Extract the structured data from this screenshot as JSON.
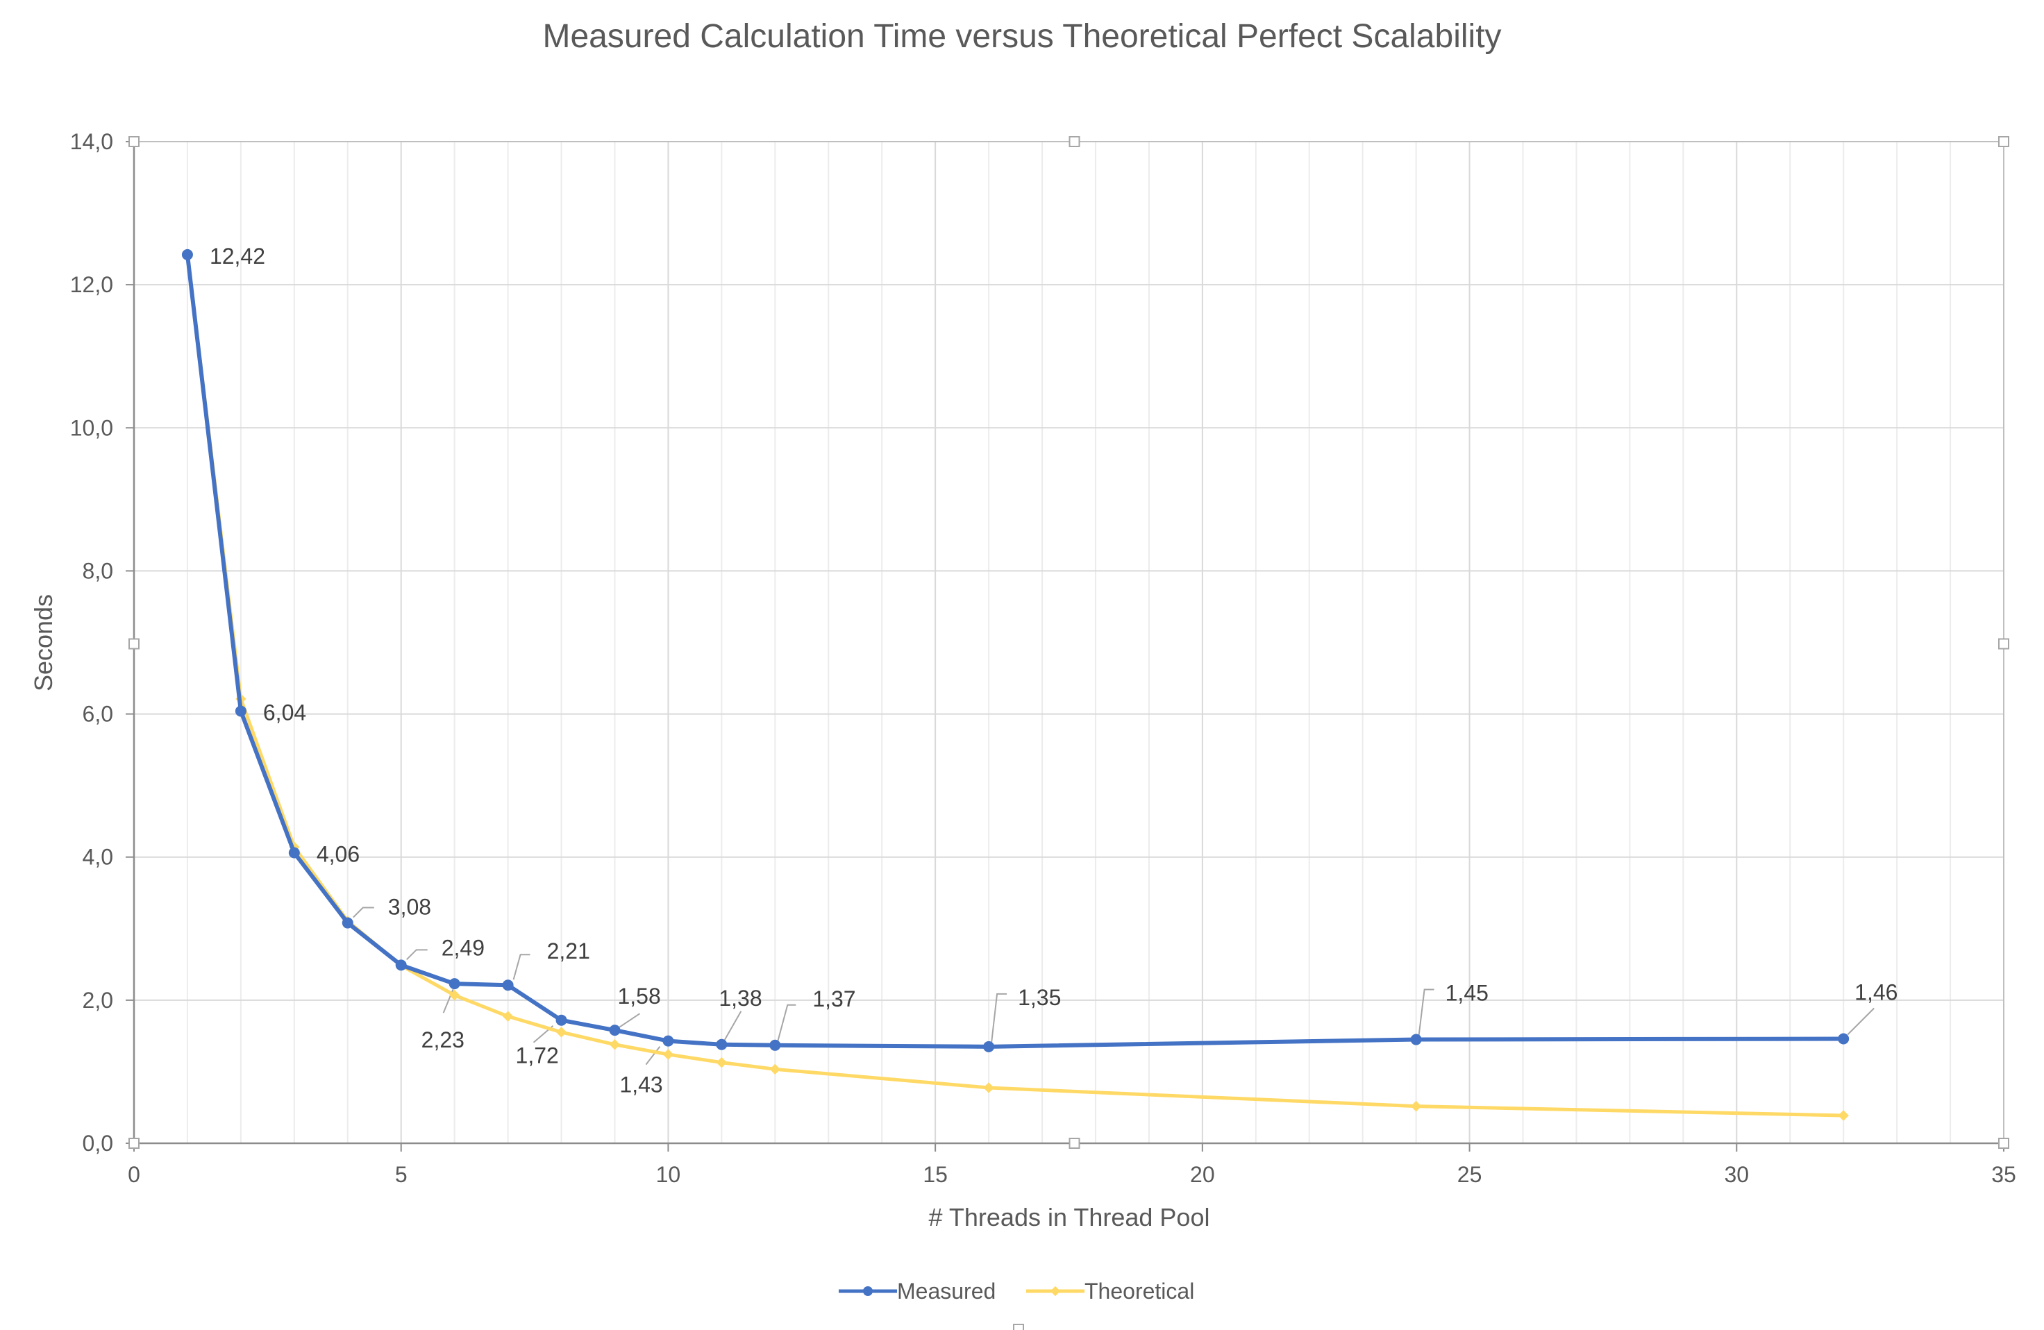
{
  "chart_data": {
    "type": "line",
    "title": "Measured Calculation Time versus Theoretical Perfect Scalability",
    "xlabel": "# Threads in Thread Pool",
    "ylabel": "Seconds",
    "xlim": [
      0,
      35
    ],
    "ylim": [
      0,
      14
    ],
    "x_major_ticks": [
      0,
      5,
      10,
      15,
      20,
      25,
      30,
      35
    ],
    "x_tick_labels": [
      "0",
      "5",
      "10",
      "15",
      "20",
      "25",
      "30",
      "35"
    ],
    "x_minor_step": 1,
    "y_major_ticks": [
      0,
      2,
      4,
      6,
      8,
      10,
      12,
      14
    ],
    "y_tick_labels": [
      "0,0",
      "2,0",
      "4,0",
      "6,0",
      "8,0",
      "10,0",
      "12,0",
      "14,0"
    ],
    "grid": true,
    "legend_position": "bottom-center",
    "series": [
      {
        "name": "Measured",
        "color": "#4472C4",
        "marker": "circle",
        "x": [
          1,
          2,
          3,
          4,
          5,
          6,
          7,
          8,
          9,
          10,
          11,
          12,
          16,
          24,
          32
        ],
        "y": [
          12.42,
          6.04,
          4.06,
          3.08,
          2.49,
          2.23,
          2.21,
          1.72,
          1.58,
          1.43,
          1.38,
          1.37,
          1.35,
          1.45,
          1.46
        ],
        "labels": [
          "12,42",
          "6,04",
          "4,06",
          "3,08",
          "2,49",
          "2,23",
          "2,21",
          "1,72",
          "1,58",
          "1,43",
          "1,38",
          "1,37",
          "1,35",
          "1,45",
          "1,46"
        ]
      },
      {
        "name": "Theoretical",
        "color": "#FFD966",
        "marker": "diamond",
        "x": [
          1,
          2,
          3,
          4,
          5,
          6,
          7,
          8,
          9,
          10,
          11,
          12,
          16,
          24,
          32
        ],
        "y": [
          12.42,
          6.21,
          4.14,
          3.105,
          2.484,
          2.07,
          1.774,
          1.553,
          1.38,
          1.242,
          1.129,
          1.035,
          0.776,
          0.518,
          0.388
        ]
      }
    ]
  }
}
